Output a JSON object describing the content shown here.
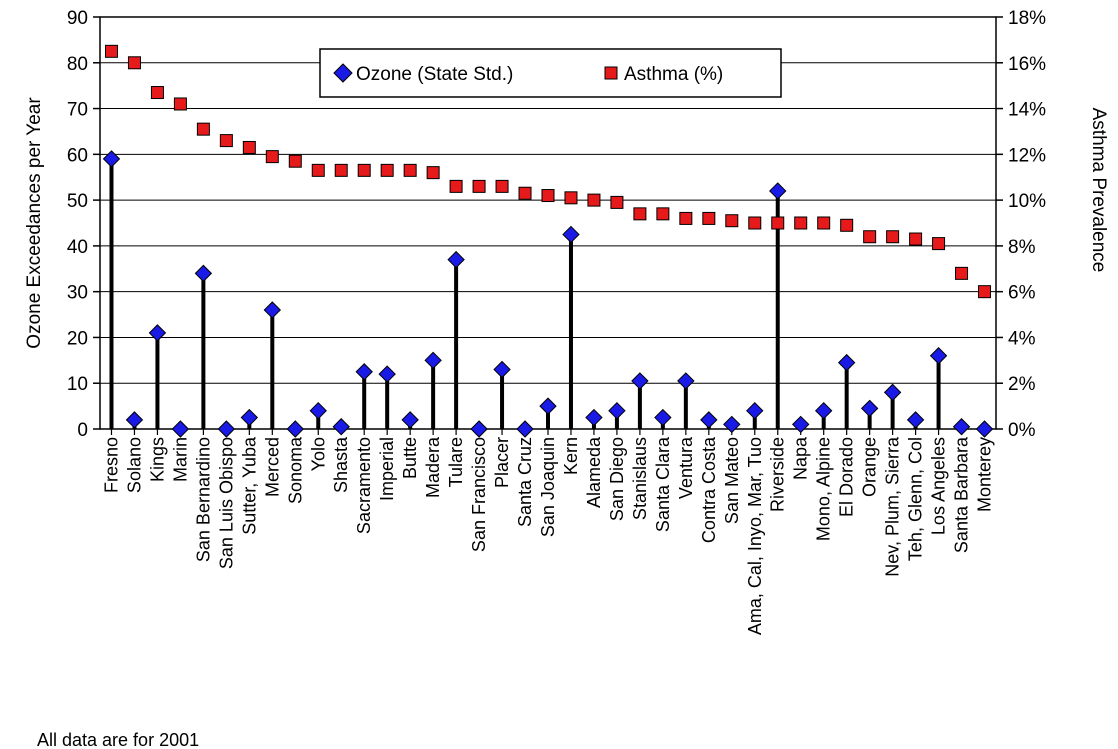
{
  "chart_data": {
    "type": "scatter",
    "categories": [
      "Fresno",
      "Solano",
      "Kings",
      "Marin",
      "San Bernardino",
      "San Luis Obispo",
      "Sutter, Yuba",
      "Merced",
      "Sonoma",
      "Yolo",
      "Shasta",
      "Sacramento",
      "Imperial",
      "Butte",
      "Madera",
      "Tulare",
      "San Francisco",
      "Placer",
      "Santa Cruz",
      "San Joaquin",
      "Kern",
      "Alameda",
      "San Diego",
      "Stanislaus",
      "Santa Clara",
      "Ventura",
      "Contra Costa",
      "San Mateo",
      "Ama, Cal, Inyo, Mar, Tuo",
      "Riverside",
      "Napa",
      "Mono, Alpine",
      "El Dorado",
      "Orange",
      "Nev, Plum, Sierra",
      "Teh, Glenn, Col",
      "Los Angeles",
      "Santa Barbara",
      "Monterey"
    ],
    "series": [
      {
        "name": "Ozone (State Std.)",
        "axis": "left",
        "marker": "diamond",
        "color": "#1a1ae6",
        "values": [
          59,
          2,
          21,
          0,
          34,
          0,
          2.5,
          26,
          0,
          4,
          0.5,
          12.5,
          12,
          2,
          15,
          37,
          0,
          13,
          0,
          5,
          42.5,
          2.5,
          4,
          10.5,
          2.5,
          10.5,
          2,
          1,
          4,
          52,
          1,
          4,
          14.5,
          4.5,
          8,
          2,
          16,
          0.5,
          0
        ]
      },
      {
        "name": "Asthma (%)",
        "axis": "right",
        "marker": "square",
        "color": "#e61a1a",
        "values": [
          16.5,
          16.0,
          14.7,
          14.2,
          13.1,
          12.6,
          12.3,
          11.9,
          11.7,
          11.3,
          11.3,
          11.3,
          11.3,
          11.3,
          11.2,
          10.6,
          10.6,
          10.6,
          10.3,
          10.2,
          10.1,
          10.0,
          9.9,
          9.4,
          9.4,
          9.2,
          9.2,
          9.1,
          9.0,
          9.0,
          9.0,
          9.0,
          8.9,
          8.4,
          8.4,
          8.3,
          8.1,
          6.8,
          6.0
        ]
      }
    ],
    "ylabel": "Ozone Exceedances per Year",
    "ylim": [
      0,
      90
    ],
    "yticks": [
      "0",
      "10",
      "20",
      "30",
      "40",
      "50",
      "60",
      "70",
      "80",
      "90"
    ],
    "y2label": "Asthma Prevalence",
    "y2lim": [
      0,
      18
    ],
    "y2ticks": [
      "0%",
      "2%",
      "4%",
      "6%",
      "8%",
      "10%",
      "12%",
      "14%",
      "16%",
      "18%"
    ],
    "grid": true,
    "legend": "top-center",
    "footnote": "All data are for 2001"
  }
}
